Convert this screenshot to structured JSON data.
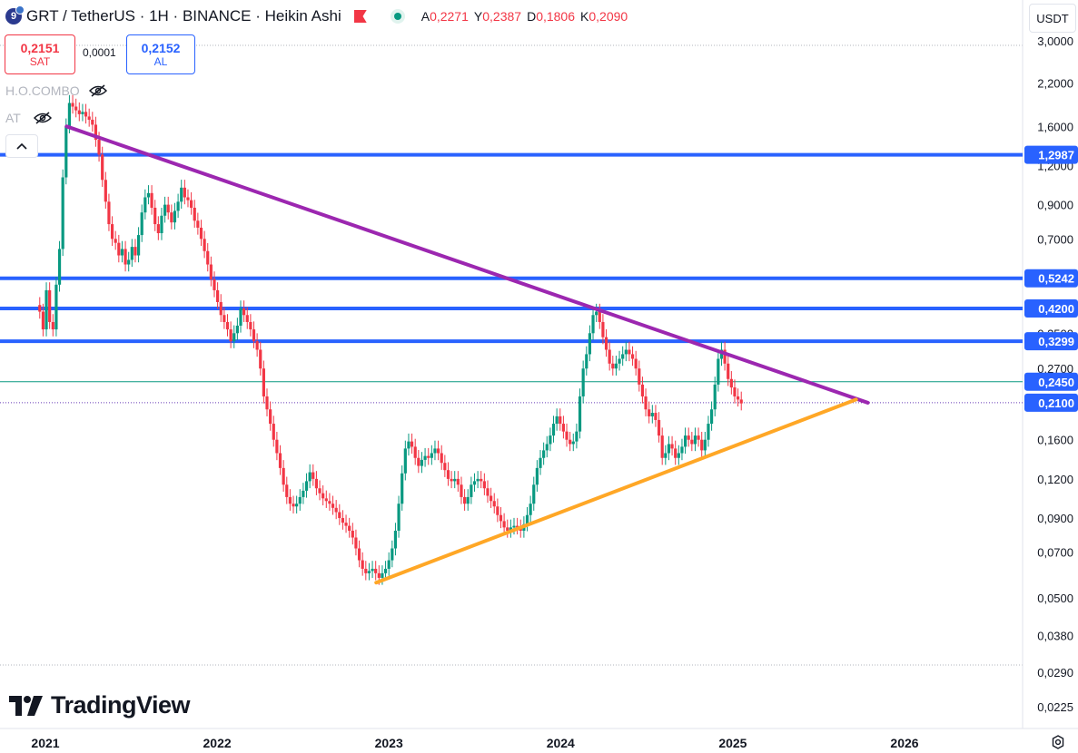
{
  "header": {
    "symbol": "GRT",
    "title": "GRT / TetherUS · 1H · BINANCE · Heikin Ashi",
    "ohlc": [
      {
        "key": "A",
        "value": "0,2271"
      },
      {
        "key": "Y",
        "value": "0,2387"
      },
      {
        "key": "D",
        "value": "0,1806"
      },
      {
        "key": "K",
        "value": "0,2090"
      }
    ]
  },
  "trade": {
    "sell_price": "0,2151",
    "sell_label": "SAT",
    "buy_price": "0,2152",
    "buy_label": "AL",
    "spread": "0,0001"
  },
  "indicators": [
    {
      "label": "H.O.COMBO"
    },
    {
      "label": "AT"
    }
  ],
  "currency": "USDT",
  "branding": "TradingView",
  "colors": {
    "up": "#089981",
    "down": "#f23645",
    "hline": "#2962ff",
    "resistance": "#9c27b0",
    "support": "#ffa726",
    "last_price": "#089981"
  },
  "chart_data": {
    "type": "candlestick (Heikin Ashi)",
    "scale": "log",
    "x_ticks": [
      "2021",
      "2022",
      "2023",
      "2024",
      "2025",
      "2026"
    ],
    "y_ticks": [
      3.0,
      2.2,
      1.6,
      1.2,
      0.9,
      0.7,
      0.35,
      0.27,
      0.16,
      0.12,
      0.09,
      0.07,
      0.05,
      0.038,
      0.029,
      0.0225
    ],
    "y_tick_labels": [
      "3,0000",
      "2,2000",
      "1,6000",
      "1,2000",
      "0,9000",
      "0,7000",
      "0,3500",
      "0,2700",
      "0,1600",
      "0,1200",
      "0,0900",
      "0,0700",
      "0,0500",
      "0,0380",
      "0,0290",
      "0,0225"
    ],
    "horizontal_levels": [
      {
        "value": 1.2987,
        "label": "1,2987"
      },
      {
        "value": 0.5242,
        "label": "0,5242"
      },
      {
        "value": 0.42,
        "label": "0,4200"
      },
      {
        "value": 0.3299,
        "label": "0,3299"
      }
    ],
    "price_labels": [
      {
        "value": 0.245,
        "label": "0,2450",
        "kind": "last"
      },
      {
        "value": 0.21,
        "label": "0,2100",
        "kind": "level"
      }
    ],
    "trendlines": [
      {
        "name": "resistance",
        "from": {
          "date": "2021-02-15",
          "value": 1.6
        },
        "to": {
          "date": "2025-10-15",
          "value": 0.21
        }
      },
      {
        "name": "support",
        "from": {
          "date": "2022-12-05",
          "value": 0.056
        },
        "to": {
          "date": "2025-09-20",
          "value": 0.215
        }
      }
    ],
    "ohlc_series": [
      {
        "date": "2020-12-20",
        "c": 0.41
      },
      {
        "date": "2020-12-27",
        "c": 0.36
      },
      {
        "date": "2021-01-03",
        "c": 0.48
      },
      {
        "date": "2021-01-10",
        "c": 0.38
      },
      {
        "date": "2021-01-17",
        "c": 0.36
      },
      {
        "date": "2021-01-24",
        "c": 0.5
      },
      {
        "date": "2021-01-31",
        "c": 0.65
      },
      {
        "date": "2021-02-07",
        "c": 1.1
      },
      {
        "date": "2021-02-14",
        "c": 1.6
      },
      {
        "date": "2021-02-21",
        "c": 1.9
      },
      {
        "date": "2021-02-28",
        "c": 1.85
      },
      {
        "date": "2021-03-07",
        "c": 1.8
      },
      {
        "date": "2021-03-14",
        "c": 1.75
      },
      {
        "date": "2021-03-21",
        "c": 1.78
      },
      {
        "date": "2021-03-28",
        "c": 1.72
      },
      {
        "date": "2021-04-04",
        "c": 1.68
      },
      {
        "date": "2021-04-11",
        "c": 1.62
      },
      {
        "date": "2021-04-18",
        "c": 1.45
      },
      {
        "date": "2021-04-25",
        "c": 1.3
      },
      {
        "date": "2021-05-02",
        "c": 1.08
      },
      {
        "date": "2021-05-09",
        "c": 0.92
      },
      {
        "date": "2021-05-16",
        "c": 0.78
      },
      {
        "date": "2021-05-23",
        "c": 0.7
      },
      {
        "date": "2021-05-30",
        "c": 0.68
      },
      {
        "date": "2021-06-06",
        "c": 0.62
      },
      {
        "date": "2021-06-13",
        "c": 0.65
      },
      {
        "date": "2021-06-20",
        "c": 0.58
      },
      {
        "date": "2021-06-27",
        "c": 0.6
      },
      {
        "date": "2021-07-04",
        "c": 0.66
      },
      {
        "date": "2021-07-11",
        "c": 0.62
      },
      {
        "date": "2021-07-18",
        "c": 0.72
      },
      {
        "date": "2021-07-25",
        "c": 0.85
      },
      {
        "date": "2021-08-01",
        "c": 0.95
      },
      {
        "date": "2021-08-08",
        "c": 0.98
      },
      {
        "date": "2021-08-15",
        "c": 0.88
      },
      {
        "date": "2021-08-22",
        "c": 0.78
      },
      {
        "date": "2021-08-29",
        "c": 0.73
      },
      {
        "date": "2021-09-05",
        "c": 0.83
      },
      {
        "date": "2021-09-12",
        "c": 0.9
      },
      {
        "date": "2021-09-19",
        "c": 0.85
      },
      {
        "date": "2021-09-26",
        "c": 0.79
      },
      {
        "date": "2021-10-03",
        "c": 0.86
      },
      {
        "date": "2021-10-10",
        "c": 0.92
      },
      {
        "date": "2021-10-17",
        "c": 1.02
      },
      {
        "date": "2021-10-24",
        "c": 0.95
      },
      {
        "date": "2021-10-31",
        "c": 0.93
      },
      {
        "date": "2021-11-07",
        "c": 0.88
      },
      {
        "date": "2021-11-14",
        "c": 0.8
      },
      {
        "date": "2021-11-21",
        "c": 0.76
      },
      {
        "date": "2021-11-28",
        "c": 0.7
      },
      {
        "date": "2021-12-05",
        "c": 0.64
      },
      {
        "date": "2021-12-12",
        "c": 0.58
      },
      {
        "date": "2021-12-19",
        "c": 0.52
      },
      {
        "date": "2021-12-26",
        "c": 0.48
      },
      {
        "date": "2022-01-02",
        "c": 0.44
      },
      {
        "date": "2022-01-09",
        "c": 0.4
      },
      {
        "date": "2022-01-16",
        "c": 0.38
      },
      {
        "date": "2022-01-23",
        "c": 0.36
      },
      {
        "date": "2022-01-30",
        "c": 0.33
      },
      {
        "date": "2022-02-06",
        "c": 0.35
      },
      {
        "date": "2022-02-13",
        "c": 0.37
      },
      {
        "date": "2022-02-20",
        "c": 0.42
      },
      {
        "date": "2022-02-27",
        "c": 0.4
      },
      {
        "date": "2022-03-06",
        "c": 0.38
      },
      {
        "date": "2022-03-13",
        "c": 0.36
      },
      {
        "date": "2022-03-20",
        "c": 0.33
      },
      {
        "date": "2022-03-27",
        "c": 0.31
      },
      {
        "date": "2022-04-03",
        "c": 0.27
      },
      {
        "date": "2022-04-10",
        "c": 0.22
      },
      {
        "date": "2022-04-17",
        "c": 0.2
      },
      {
        "date": "2022-04-24",
        "c": 0.18
      },
      {
        "date": "2022-05-01",
        "c": 0.16
      },
      {
        "date": "2022-05-08",
        "c": 0.145
      },
      {
        "date": "2022-05-15",
        "c": 0.13
      },
      {
        "date": "2022-05-22",
        "c": 0.115
      },
      {
        "date": "2022-05-29",
        "c": 0.105
      },
      {
        "date": "2022-06-05",
        "c": 0.1
      },
      {
        "date": "2022-06-12",
        "c": 0.098
      },
      {
        "date": "2022-06-19",
        "c": 0.1
      },
      {
        "date": "2022-06-26",
        "c": 0.105
      },
      {
        "date": "2022-07-03",
        "c": 0.11
      },
      {
        "date": "2022-07-10",
        "c": 0.118
      },
      {
        "date": "2022-07-17",
        "c": 0.126
      },
      {
        "date": "2022-07-24",
        "c": 0.12
      },
      {
        "date": "2022-07-31",
        "c": 0.112
      },
      {
        "date": "2022-08-07",
        "c": 0.108
      },
      {
        "date": "2022-08-14",
        "c": 0.104
      },
      {
        "date": "2022-08-21",
        "c": 0.102
      },
      {
        "date": "2022-08-28",
        "c": 0.1
      },
      {
        "date": "2022-09-04",
        "c": 0.097
      },
      {
        "date": "2022-09-11",
        "c": 0.094
      },
      {
        "date": "2022-09-18",
        "c": 0.09
      },
      {
        "date": "2022-09-25",
        "c": 0.087
      },
      {
        "date": "2022-10-02",
        "c": 0.085
      },
      {
        "date": "2022-10-09",
        "c": 0.082
      },
      {
        "date": "2022-10-16",
        "c": 0.078
      },
      {
        "date": "2022-10-23",
        "c": 0.072
      },
      {
        "date": "2022-10-30",
        "c": 0.066
      },
      {
        "date": "2022-11-06",
        "c": 0.062
      },
      {
        "date": "2022-11-13",
        "c": 0.06
      },
      {
        "date": "2022-11-20",
        "c": 0.061
      },
      {
        "date": "2022-11-27",
        "c": 0.062
      },
      {
        "date": "2022-12-04",
        "c": 0.06
      },
      {
        "date": "2022-12-11",
        "c": 0.058
      },
      {
        "date": "2022-12-18",
        "c": 0.06
      },
      {
        "date": "2022-12-25",
        "c": 0.062
      },
      {
        "date": "2023-01-01",
        "c": 0.066
      },
      {
        "date": "2023-01-08",
        "c": 0.072
      },
      {
        "date": "2023-01-15",
        "c": 0.082
      },
      {
        "date": "2023-01-22",
        "c": 0.1
      },
      {
        "date": "2023-01-29",
        "c": 0.125
      },
      {
        "date": "2023-02-05",
        "c": 0.15
      },
      {
        "date": "2023-02-12",
        "c": 0.158
      },
      {
        "date": "2023-02-19",
        "c": 0.152
      },
      {
        "date": "2023-02-26",
        "c": 0.14
      },
      {
        "date": "2023-03-05",
        "c": 0.132
      },
      {
        "date": "2023-03-12",
        "c": 0.138
      },
      {
        "date": "2023-03-19",
        "c": 0.142
      },
      {
        "date": "2023-03-26",
        "c": 0.14
      },
      {
        "date": "2023-04-02",
        "c": 0.145
      },
      {
        "date": "2023-04-09",
        "c": 0.15
      },
      {
        "date": "2023-04-16",
        "c": 0.145
      },
      {
        "date": "2023-04-23",
        "c": 0.135
      },
      {
        "date": "2023-04-30",
        "c": 0.128
      },
      {
        "date": "2023-05-07",
        "c": 0.12
      },
      {
        "date": "2023-05-14",
        "c": 0.118
      },
      {
        "date": "2023-05-21",
        "c": 0.12
      },
      {
        "date": "2023-05-28",
        "c": 0.115
      },
      {
        "date": "2023-06-04",
        "c": 0.105
      },
      {
        "date": "2023-06-11",
        "c": 0.1
      },
      {
        "date": "2023-06-18",
        "c": 0.105
      },
      {
        "date": "2023-06-25",
        "c": 0.115
      },
      {
        "date": "2023-07-02",
        "c": 0.118
      },
      {
        "date": "2023-07-09",
        "c": 0.12
      },
      {
        "date": "2023-07-16",
        "c": 0.118
      },
      {
        "date": "2023-07-23",
        "c": 0.112
      },
      {
        "date": "2023-07-30",
        "c": 0.106
      },
      {
        "date": "2023-08-06",
        "c": 0.102
      },
      {
        "date": "2023-08-13",
        "c": 0.098
      },
      {
        "date": "2023-08-20",
        "c": 0.092
      },
      {
        "date": "2023-08-27",
        "c": 0.088
      },
      {
        "date": "2023-09-03",
        "c": 0.084
      },
      {
        "date": "2023-09-10",
        "c": 0.082
      },
      {
        "date": "2023-09-17",
        "c": 0.084
      },
      {
        "date": "2023-09-24",
        "c": 0.085
      },
      {
        "date": "2023-10-01",
        "c": 0.084
      },
      {
        "date": "2023-10-08",
        "c": 0.082
      },
      {
        "date": "2023-10-15",
        "c": 0.086
      },
      {
        "date": "2023-10-22",
        "c": 0.092
      },
      {
        "date": "2023-10-29",
        "c": 0.1
      },
      {
        "date": "2023-11-05",
        "c": 0.115
      },
      {
        "date": "2023-11-12",
        "c": 0.13
      },
      {
        "date": "2023-11-19",
        "c": 0.14
      },
      {
        "date": "2023-11-26",
        "c": 0.148
      },
      {
        "date": "2023-12-03",
        "c": 0.155
      },
      {
        "date": "2023-12-10",
        "c": 0.165
      },
      {
        "date": "2023-12-17",
        "c": 0.18
      },
      {
        "date": "2023-12-24",
        "c": 0.19
      },
      {
        "date": "2023-12-31",
        "c": 0.18
      },
      {
        "date": "2024-01-07",
        "c": 0.17
      },
      {
        "date": "2024-01-14",
        "c": 0.16
      },
      {
        "date": "2024-01-21",
        "c": 0.155
      },
      {
        "date": "2024-01-28",
        "c": 0.158
      },
      {
        "date": "2024-02-04",
        "c": 0.17
      },
      {
        "date": "2024-02-11",
        "c": 0.22
      },
      {
        "date": "2024-02-18",
        "c": 0.27
      },
      {
        "date": "2024-02-25",
        "c": 0.3
      },
      {
        "date": "2024-03-03",
        "c": 0.35
      },
      {
        "date": "2024-03-10",
        "c": 0.4
      },
      {
        "date": "2024-03-17",
        "c": 0.41
      },
      {
        "date": "2024-03-24",
        "c": 0.38
      },
      {
        "date": "2024-03-31",
        "c": 0.34
      },
      {
        "date": "2024-04-07",
        "c": 0.31
      },
      {
        "date": "2024-04-14",
        "c": 0.28
      },
      {
        "date": "2024-04-21",
        "c": 0.27
      },
      {
        "date": "2024-04-28",
        "c": 0.28
      },
      {
        "date": "2024-05-05",
        "c": 0.29
      },
      {
        "date": "2024-05-12",
        "c": 0.3
      },
      {
        "date": "2024-05-19",
        "c": 0.31
      },
      {
        "date": "2024-05-26",
        "c": 0.3
      },
      {
        "date": "2024-06-02",
        "c": 0.29
      },
      {
        "date": "2024-06-09",
        "c": 0.27
      },
      {
        "date": "2024-06-16",
        "c": 0.24
      },
      {
        "date": "2024-06-23",
        "c": 0.22
      },
      {
        "date": "2024-06-30",
        "c": 0.2
      },
      {
        "date": "2024-07-07",
        "c": 0.19
      },
      {
        "date": "2024-07-14",
        "c": 0.195
      },
      {
        "date": "2024-07-21",
        "c": 0.185
      },
      {
        "date": "2024-07-28",
        "c": 0.165
      },
      {
        "date": "2024-08-04",
        "c": 0.14
      },
      {
        "date": "2024-08-11",
        "c": 0.145
      },
      {
        "date": "2024-08-18",
        "c": 0.155
      },
      {
        "date": "2024-08-25",
        "c": 0.15
      },
      {
        "date": "2024-09-01",
        "c": 0.14
      },
      {
        "date": "2024-09-08",
        "c": 0.145
      },
      {
        "date": "2024-09-15",
        "c": 0.152
      },
      {
        "date": "2024-09-22",
        "c": 0.165
      },
      {
        "date": "2024-09-29",
        "c": 0.16
      },
      {
        "date": "2024-10-06",
        "c": 0.155
      },
      {
        "date": "2024-10-13",
        "c": 0.165
      },
      {
        "date": "2024-10-20",
        "c": 0.16
      },
      {
        "date": "2024-10-27",
        "c": 0.148
      },
      {
        "date": "2024-11-03",
        "c": 0.16
      },
      {
        "date": "2024-11-10",
        "c": 0.18
      },
      {
        "date": "2024-11-17",
        "c": 0.2
      },
      {
        "date": "2024-11-24",
        "c": 0.24
      },
      {
        "date": "2024-12-01",
        "c": 0.29
      },
      {
        "date": "2024-12-08",
        "c": 0.31
      },
      {
        "date": "2024-12-15",
        "c": 0.28
      },
      {
        "date": "2024-12-22",
        "c": 0.25
      },
      {
        "date": "2024-12-29",
        "c": 0.235
      },
      {
        "date": "2025-01-05",
        "c": 0.22
      },
      {
        "date": "2025-01-12",
        "c": 0.215
      },
      {
        "date": "2025-01-19",
        "c": 0.209
      }
    ]
  }
}
